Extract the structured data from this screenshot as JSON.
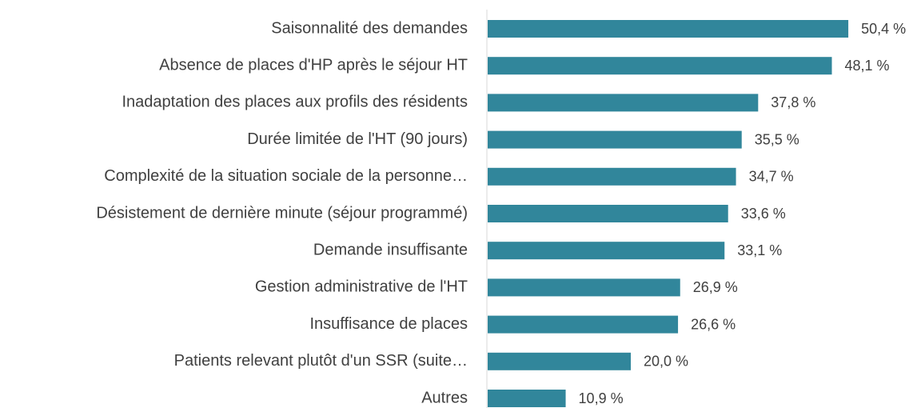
{
  "chart_data": {
    "type": "bar",
    "orientation": "horizontal",
    "categories": [
      "Saisonnalité des demandes",
      "Absence de places d'HP après le séjour HT",
      "Inadaptation des places aux profils des résidents",
      "Durée limitée de l'HT (90 jours)",
      "Complexité de la situation sociale de la personne…",
      "Désistement de dernière minute (séjour programmé)",
      "Demande insuffisante",
      "Gestion administrative de l'HT",
      "Insuffisance de places",
      "Patients relevant plutôt d'un SSR (suite…",
      "Autres"
    ],
    "values": [
      50.4,
      48.1,
      37.8,
      35.5,
      34.7,
      33.6,
      33.1,
      26.9,
      26.6,
      20.0,
      10.9
    ],
    "value_labels": [
      "50,4 %",
      "48,1 %",
      "37,8 %",
      "35,5 %",
      "34,7 %",
      "33,6 %",
      "33,1 %",
      "26,9 %",
      "26,6 %",
      "20,0 %",
      "10,9 %"
    ],
    "color": "#31869b"
  }
}
